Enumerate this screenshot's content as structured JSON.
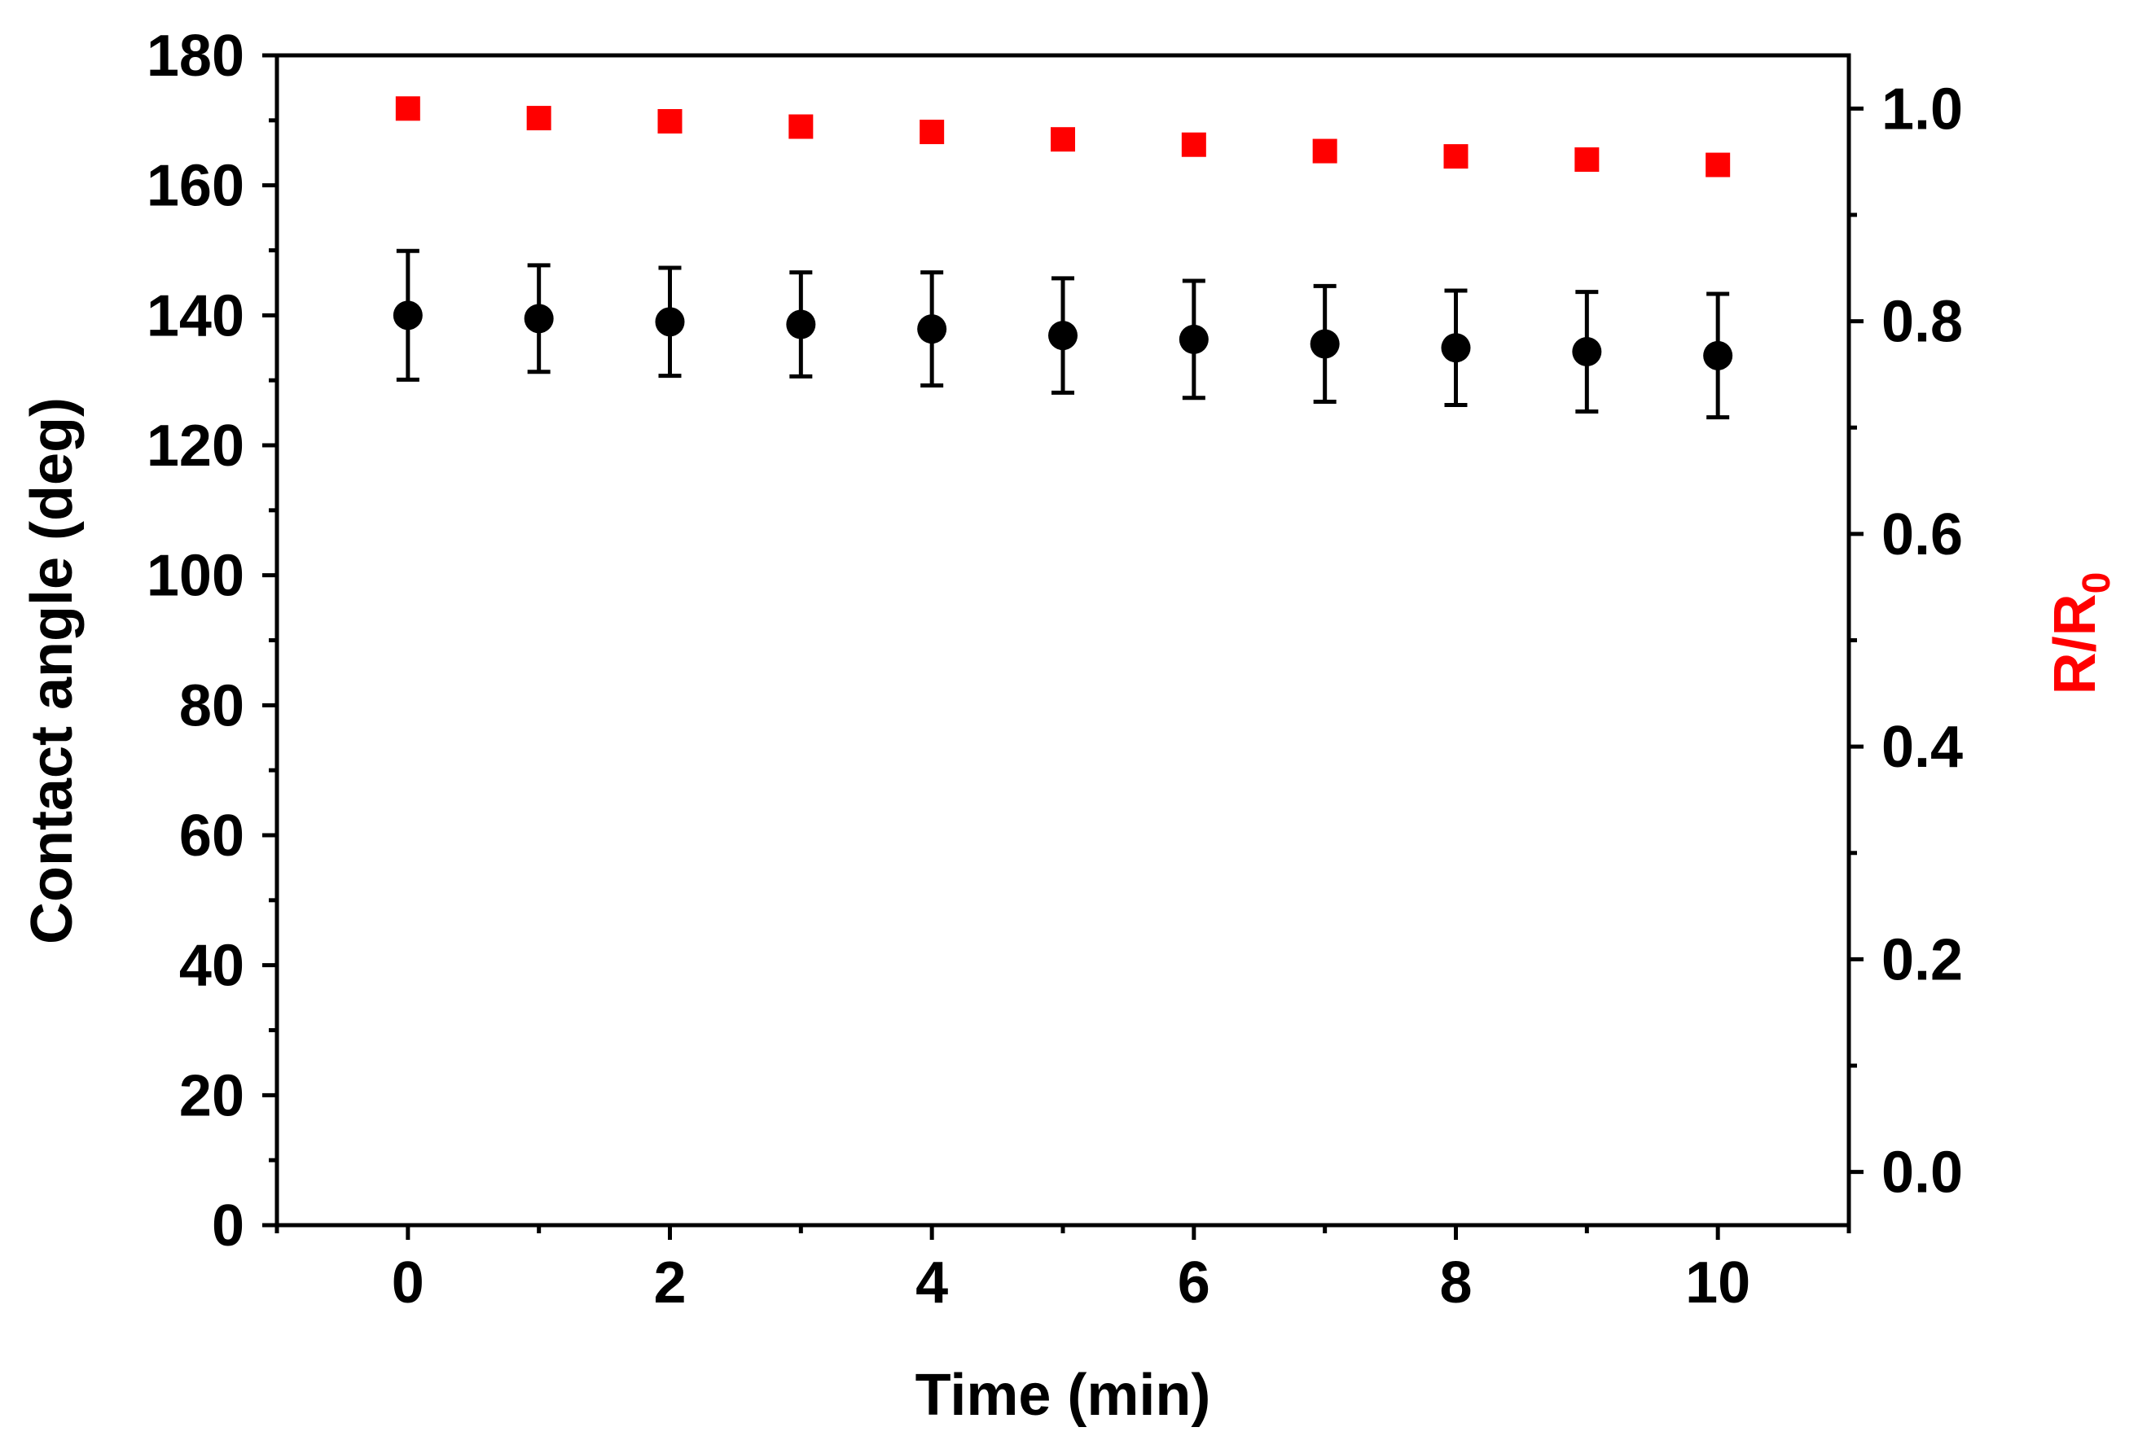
{
  "chart_data": {
    "type": "scatter",
    "x": [
      0,
      1,
      2,
      3,
      4,
      5,
      6,
      7,
      8,
      9,
      10
    ],
    "xlabel": "Time (min)",
    "xlim": [
      -1,
      11
    ],
    "xticks": [
      0,
      2,
      4,
      6,
      8,
      10
    ],
    "xtick_labels": [
      "0",
      "2",
      "4",
      "6",
      "8",
      "10"
    ],
    "ylabel": "Contact angle (deg)",
    "ylim": [
      0,
      180
    ],
    "yticks": [
      0,
      20,
      40,
      60,
      80,
      100,
      120,
      140,
      160,
      180
    ],
    "ytick_labels": [
      "0",
      "20",
      "40",
      "60",
      "80",
      "100",
      "120",
      "140",
      "160",
      "180"
    ],
    "y2label": {
      "main": "R/R",
      "sub": "0"
    },
    "y2lim": [
      -0.05,
      1.05
    ],
    "y2ticks": [
      0.0,
      0.2,
      0.4,
      0.6,
      0.8,
      1.0
    ],
    "y2tick_labels": [
      "0.0",
      "0.2",
      "0.4",
      "0.6",
      "0.8",
      "1.0"
    ],
    "grid": false,
    "series": [
      {
        "axis": "left",
        "marker": "circle",
        "color": "#000000",
        "values": [
          140.0,
          139.5,
          139.0,
          138.6,
          137.9,
          136.9,
          136.3,
          135.6,
          135.0,
          134.4,
          133.8
        ],
        "error": [
          9.9,
          8.2,
          8.3,
          8.0,
          8.7,
          8.8,
          9.0,
          8.9,
          8.8,
          9.2,
          9.5
        ]
      },
      {
        "axis": "right",
        "marker": "square",
        "color": "#ff0000",
        "values": [
          1.0,
          0.991,
          0.988,
          0.983,
          0.978,
          0.971,
          0.966,
          0.96,
          0.955,
          0.952,
          0.947
        ]
      }
    ],
    "colors": {
      "axis": "#000000",
      "right_label": "#ff0000"
    }
  }
}
